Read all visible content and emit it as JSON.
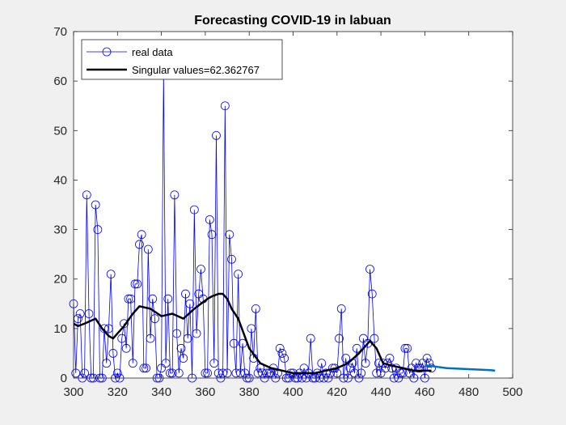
{
  "chart_data": {
    "type": "line",
    "title": "Forecasting COVID-19 in labuan",
    "xlabel": "",
    "ylabel": "",
    "xlim": [
      300,
      500
    ],
    "ylim": [
      0,
      70
    ],
    "xticks": [
      300,
      320,
      340,
      360,
      380,
      400,
      420,
      440,
      460,
      480,
      500
    ],
    "yticks": [
      0,
      10,
      20,
      30,
      40,
      50,
      60,
      70
    ],
    "grid": false,
    "legend_position": "top-left",
    "series": [
      {
        "name": "real data",
        "style": "line-with-circle-markers",
        "color": "#0000ff",
        "x_start": 300,
        "x_step": 1,
        "values": [
          15,
          1,
          12,
          13,
          0,
          1,
          37,
          13,
          0,
          0,
          35,
          30,
          0,
          0,
          10,
          3,
          10,
          21,
          5,
          0,
          1,
          0,
          8,
          11,
          6,
          16,
          16,
          3,
          19,
          19,
          27,
          29,
          2,
          2,
          26,
          8,
          16,
          12,
          0,
          0,
          2,
          62,
          3,
          16,
          1,
          1,
          37,
          9,
          1,
          6,
          4,
          17,
          8,
          15,
          0,
          34,
          9,
          17,
          22,
          16,
          1,
          1,
          32,
          29,
          3,
          49,
          1,
          0,
          1,
          55,
          1,
          29,
          24,
          7,
          1,
          21,
          1,
          7,
          1,
          0,
          0,
          10,
          4,
          14,
          1,
          2,
          1,
          0,
          1,
          1,
          1,
          2,
          0,
          1,
          6,
          5,
          4,
          0,
          0,
          1,
          1,
          0,
          0,
          1,
          0,
          2,
          0,
          1,
          8,
          0,
          0,
          1,
          0,
          3,
          0,
          1,
          0,
          1,
          2,
          2,
          1,
          8,
          14,
          0,
          4,
          0,
          2,
          3,
          1,
          6,
          0,
          1,
          8,
          3,
          7,
          22,
          17,
          8,
          1,
          3,
          1,
          3,
          2,
          3,
          4,
          2,
          0,
          2,
          0,
          1,
          1,
          6,
          6,
          1,
          2,
          0,
          3,
          2,
          2,
          3,
          0,
          4,
          3,
          2
        ]
      },
      {
        "name": "Singular values=62.362767",
        "style": "thick-line",
        "color": "#000000",
        "x": [
          300,
          302,
          305,
          310,
          313,
          316,
          318,
          320,
          323,
          327,
          330,
          335,
          340,
          345,
          350,
          355,
          358,
          361,
          363,
          366,
          368,
          370,
          372,
          375,
          380,
          385,
          390,
          395,
          400,
          405,
          410,
          415,
          420,
          425,
          430,
          435,
          438,
          441,
          445,
          450,
          455,
          460,
          463
        ],
        "y": [
          11,
          10.5,
          11,
          12,
          10,
          8.5,
          8,
          9,
          10.5,
          13,
          14.5,
          14,
          12.5,
          13,
          12,
          14,
          15,
          16,
          16.5,
          17,
          17,
          16,
          14,
          12,
          6,
          3,
          2,
          1.5,
          1,
          1,
          1,
          1.5,
          2,
          3,
          5,
          7.5,
          6,
          3,
          2.5,
          2,
          1.5,
          1.5,
          1.5
        ]
      },
      {
        "name": "",
        "style": "forecast-line",
        "color": "#0072bd",
        "x": [
          460,
          465,
          470,
          475,
          480,
          485,
          490,
          492
        ],
        "y": [
          2.6,
          2.3,
          2.0,
          1.9,
          1.8,
          1.7,
          1.6,
          1.5
        ]
      }
    ]
  }
}
